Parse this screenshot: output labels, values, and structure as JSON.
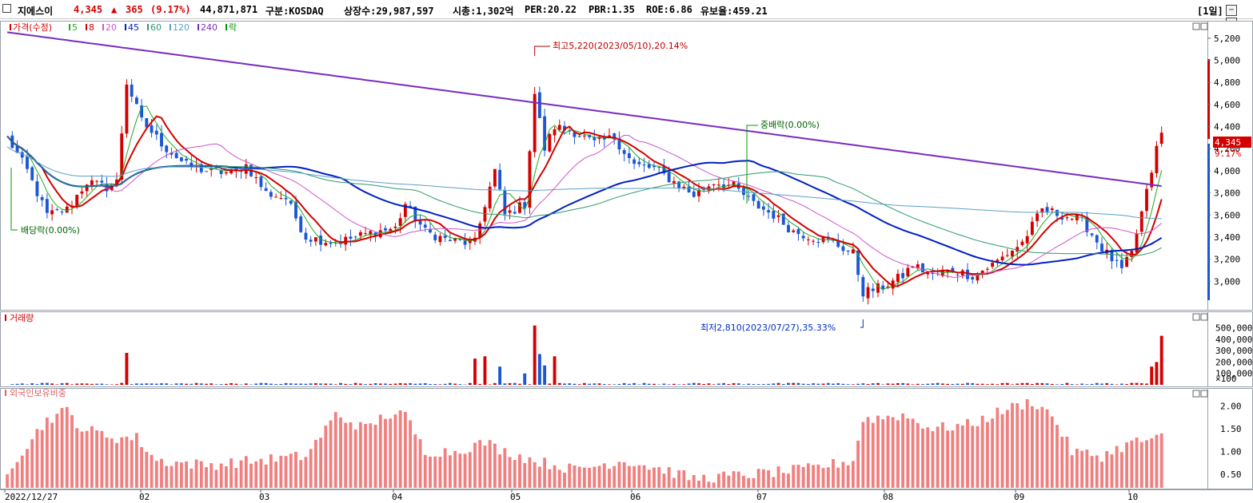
{
  "header": {
    "name": "지에스이",
    "price": "4,345",
    "change_arrow": "▲",
    "change": "365",
    "change_pct": "(9.17%)",
    "volume": "44,871,871",
    "market": "구분:KOSDAQ",
    "shares": "상장수:29,987,597",
    "mktcap": "시총:1,302억",
    "per": "PER:20.22",
    "pbr": "PBR:1.35",
    "roe": "ROE:6.86",
    "reserve": "유보율:459.21",
    "period": "[1일]",
    "up_color": "#d40000",
    "down_color": "#1a56d6"
  },
  "window_buttons": [
    "─",
    "□",
    "X"
  ],
  "price_panel": {
    "legend_items": [
      {
        "label": "가격(수정)",
        "color": "#d40000"
      },
      {
        "label": "5",
        "color": "#22aa22"
      },
      {
        "label": "8",
        "color": "#d40000"
      },
      {
        "label": "20",
        "color": "#cc55cc"
      },
      {
        "label": "45",
        "color": "#0020c0"
      },
      {
        "label": "60",
        "color": "#2a9a6a"
      },
      {
        "label": "120",
        "color": "#5aa0c8"
      },
      {
        "label": "240",
        "color": "#7b2cbf"
      },
      {
        "label": "락",
        "color": "#009900"
      }
    ],
    "annotations": {
      "high": "최고5,220(2023/05/10),20.14%",
      "low": "최저2,810(2023/07/27),35.33%",
      "dividend": "배당락(0.00%)",
      "bonus": "중배락(0.00%)"
    },
    "y_ticks": [
      "5,200",
      "5,000",
      "4,800",
      "4,600",
      "4,400",
      "4,200",
      "4,000",
      "3,800",
      "3,600",
      "3,400",
      "3,200",
      "3,000"
    ],
    "current_price_label": "4,345",
    "current_pct_label": "9.17%"
  },
  "volume_panel": {
    "legend": "거래량",
    "y_ticks": [
      "500,000",
      "400,000",
      "300,000",
      "200,000",
      "100,000",
      "×100"
    ]
  },
  "foreign_panel": {
    "legend": "외국인보유비중",
    "y_ticks": [
      "2.00",
      "1.50",
      "1.00",
      "0.50"
    ]
  },
  "x_axis": [
    "2022/12/27",
    "02",
    "03",
    "04",
    "05",
    "06",
    "07",
    "08",
    "09",
    "10"
  ],
  "chart_data": {
    "type": "candlestick",
    "y_range": [
      2800,
      5300
    ],
    "ohlc_note": "daily candles, key points read from chart",
    "price_path": [
      [
        0,
        4300
      ],
      [
        4,
        4000
      ],
      [
        8,
        3600
      ],
      [
        12,
        3650
      ],
      [
        16,
        3900
      ],
      [
        20,
        3850
      ],
      [
        22,
        3900
      ],
      [
        24,
        4800
      ],
      [
        27,
        4450
      ],
      [
        32,
        4200
      ],
      [
        36,
        4050
      ],
      [
        40,
        4000
      ],
      [
        45,
        3980
      ],
      [
        48,
        4050
      ],
      [
        52,
        3800
      ],
      [
        56,
        3750
      ],
      [
        60,
        3400
      ],
      [
        66,
        3350
      ],
      [
        70,
        3400
      ],
      [
        74,
        3450
      ],
      [
        78,
        3480
      ],
      [
        80,
        3700
      ],
      [
        84,
        3450
      ],
      [
        88,
        3380
      ],
      [
        92,
        3350
      ],
      [
        94,
        3350
      ],
      [
        96,
        3700
      ],
      [
        98,
        4000
      ],
      [
        100,
        3600
      ],
      [
        104,
        3700
      ],
      [
        106,
        4700
      ],
      [
        108,
        4200
      ],
      [
        110,
        4400
      ],
      [
        114,
        4350
      ],
      [
        118,
        4250
      ],
      [
        122,
        4300
      ],
      [
        126,
        4050
      ],
      [
        130,
        4020
      ],
      [
        134,
        3900
      ],
      [
        138,
        3780
      ],
      [
        142,
        3900
      ],
      [
        146,
        3860
      ],
      [
        150,
        3700
      ],
      [
        154,
        3600
      ],
      [
        158,
        3450
      ],
      [
        162,
        3400
      ],
      [
        166,
        3350
      ],
      [
        170,
        3250
      ],
      [
        172,
        2900
      ],
      [
        176,
        2950
      ],
      [
        180,
        3050
      ],
      [
        182,
        3150
      ],
      [
        186,
        3050
      ],
      [
        190,
        3100
      ],
      [
        194,
        3050
      ],
      [
        198,
        3150
      ],
      [
        204,
        3350
      ],
      [
        208,
        3650
      ],
      [
        212,
        3600
      ],
      [
        216,
        3550
      ],
      [
        220,
        3300
      ],
      [
        224,
        3100
      ],
      [
        226,
        3250
      ],
      [
        229,
        3800
      ],
      [
        231,
        4200
      ],
      [
        232,
        4345
      ]
    ],
    "moving_averages": [
      "5",
      "8",
      "20",
      "45",
      "60",
      "120",
      "240"
    ],
    "volume_peaks": [
      {
        "day": 24,
        "value": 280000
      },
      {
        "day": 94,
        "value": 230000
      },
      {
        "day": 96,
        "value": 250000
      },
      {
        "day": 99,
        "value": 160000
      },
      {
        "day": 104,
        "value": 100000
      },
      {
        "day": 106,
        "value": 520000
      },
      {
        "day": 107,
        "value": 270000
      },
      {
        "day": 108,
        "value": 170000
      },
      {
        "day": 110,
        "value": 250000
      },
      {
        "day": 230,
        "value": 160000
      },
      {
        "day": 231,
        "value": 200000
      },
      {
        "day": 232,
        "value": 430000
      }
    ],
    "foreign_range": [
      0.2,
      2.2
    ]
  }
}
